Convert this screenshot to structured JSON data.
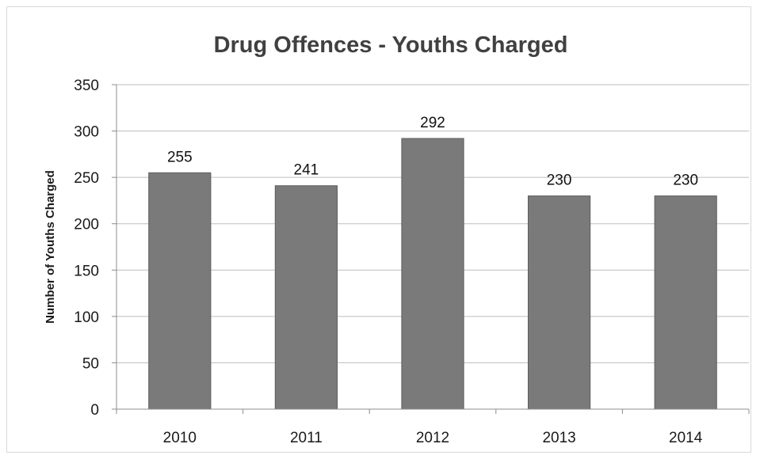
{
  "chart_data": {
    "type": "bar",
    "title": "Drug Offences - Youths Charged",
    "xlabel": "",
    "ylabel": "Number of Youths Charged",
    "categories": [
      "2010",
      "2011",
      "2012",
      "2013",
      "2014"
    ],
    "values": [
      255,
      241,
      292,
      230,
      230
    ],
    "data_labels": [
      "255",
      "241",
      "292",
      "230",
      "230"
    ],
    "ylim": [
      0,
      350
    ],
    "yticks": [
      0,
      50,
      100,
      150,
      200,
      250,
      300,
      350
    ],
    "grid": true,
    "legend": "none",
    "colors": {
      "bar": "#7a7a7a",
      "bar_edge": "#5e5e5e",
      "grid": "#bdbdbd",
      "axis": "#8c8c8c"
    }
  }
}
